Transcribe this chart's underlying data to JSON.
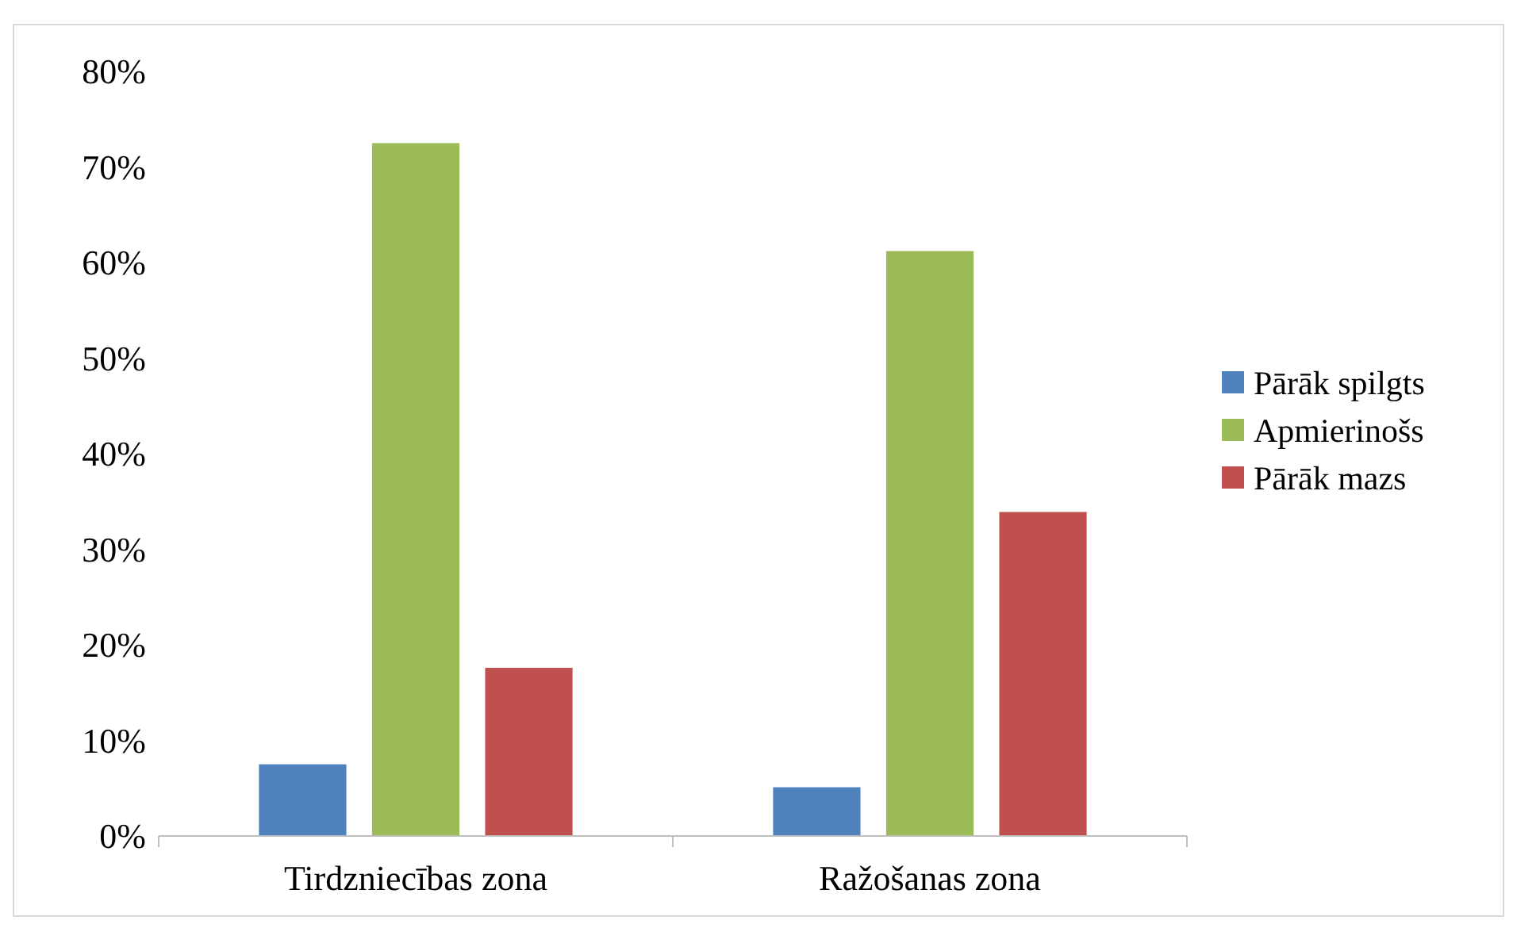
{
  "chart_data": {
    "type": "bar",
    "categories": [
      "Tirdzniecības zona",
      "Ražošanas zona"
    ],
    "series": [
      {
        "name": "Pārāk spilgts",
        "color": "#4f81bd",
        "values": [
          7.5,
          5.1
        ]
      },
      {
        "name": "Apmierinošs",
        "color": "#9bbb59",
        "values": [
          72.5,
          61.2
        ]
      },
      {
        "name": "Pārāk mazs",
        "color": "#c0504d",
        "values": [
          17.6,
          33.9
        ]
      }
    ],
    "ylim": [
      0,
      80
    ],
    "yticks": [
      {
        "value": 0,
        "label": "0%"
      },
      {
        "value": 10,
        "label": "10%"
      },
      {
        "value": 20,
        "label": "20%"
      },
      {
        "value": 30,
        "label": "30%"
      },
      {
        "value": 40,
        "label": "40%"
      },
      {
        "value": 50,
        "label": "50%"
      },
      {
        "value": 60,
        "label": "60%"
      },
      {
        "value": 70,
        "label": "70%"
      },
      {
        "value": 80,
        "label": "80%"
      }
    ],
    "grid": false,
    "legend": "right"
  }
}
